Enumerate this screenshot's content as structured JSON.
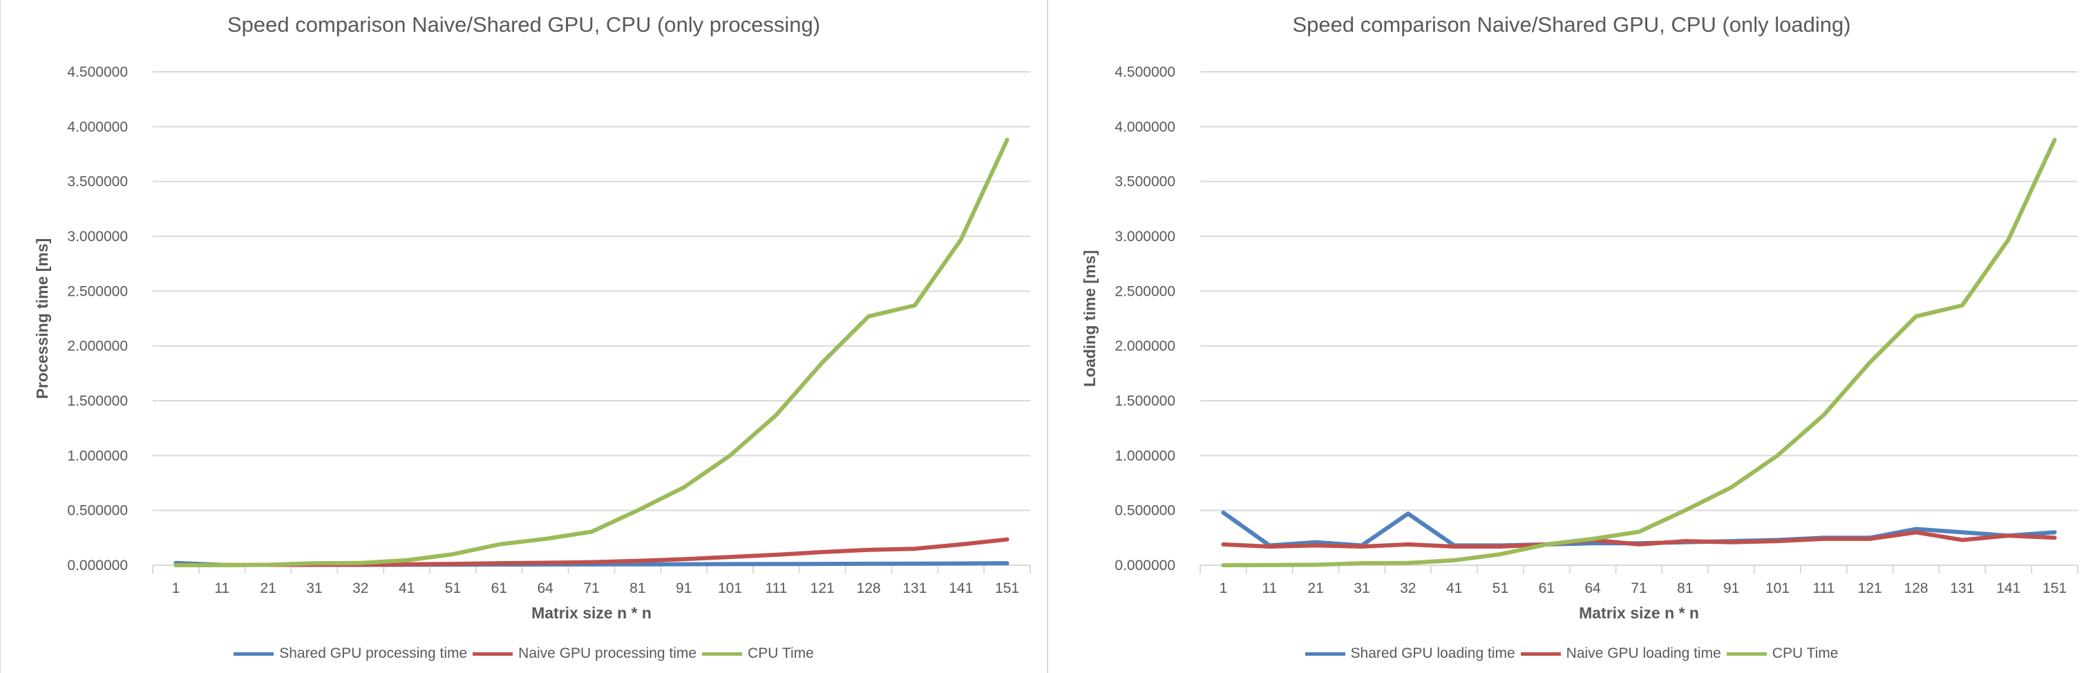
{
  "colors": {
    "shared": "#4f81bd",
    "naive": "#c0504d",
    "cpu": "#9bbb59",
    "grid": "#d9d9d9"
  },
  "chart_data": [
    {
      "type": "line",
      "title": "Speed comparison Naive/Shared GPU, CPU (only processing)",
      "xlabel": "Matrix size n * n",
      "ylabel": "Processing time [ms]",
      "categories": [
        "1",
        "11",
        "21",
        "31",
        "32",
        "41",
        "51",
        "61",
        "64",
        "71",
        "81",
        "91",
        "101",
        "111",
        "121",
        "128",
        "131",
        "141",
        "151"
      ],
      "ylim": [
        0,
        4.5
      ],
      "yticks": [
        "0.000000",
        "0.500000",
        "1.000000",
        "1.500000",
        "2.000000",
        "2.500000",
        "3.000000",
        "3.500000",
        "4.000000",
        "4.500000"
      ],
      "grid": true,
      "legend_position": "bottom",
      "series": [
        {
          "name": "Shared GPU processing time",
          "color_key": "shared",
          "values": [
            0.02,
            0.003,
            0.003,
            0.003,
            0.003,
            0.004,
            0.005,
            0.006,
            0.007,
            0.007,
            0.008,
            0.009,
            0.01,
            0.011,
            0.012,
            0.013,
            0.014,
            0.016,
            0.018
          ]
        },
        {
          "name": "Naive GPU processing time",
          "color_key": "naive",
          "values": [
            0.002,
            0.002,
            0.003,
            0.004,
            0.005,
            0.008,
            0.012,
            0.018,
            0.022,
            0.028,
            0.04,
            0.055,
            0.075,
            0.095,
            0.12,
            0.14,
            0.15,
            0.19,
            0.235
          ]
        },
        {
          "name": "CPU Time",
          "color_key": "cpu",
          "values": [
            0.0,
            0.001,
            0.004,
            0.018,
            0.02,
            0.045,
            0.1,
            0.19,
            0.24,
            0.305,
            0.5,
            0.71,
            1.0,
            1.37,
            1.85,
            2.27,
            2.37,
            2.97,
            3.88
          ]
        }
      ]
    },
    {
      "type": "line",
      "title": "Speed comparison Naive/Shared GPU, CPU (only loading)",
      "xlabel": "Matrix size n * n",
      "ylabel": "Loading time [ms]",
      "categories": [
        "1",
        "11",
        "21",
        "31",
        "32",
        "41",
        "51",
        "61",
        "64",
        "71",
        "81",
        "91",
        "101",
        "111",
        "121",
        "128",
        "131",
        "141",
        "151"
      ],
      "ylim": [
        0,
        4.5
      ],
      "yticks": [
        "0.000000",
        "0.500000",
        "1.000000",
        "1.500000",
        "2.000000",
        "2.500000",
        "3.000000",
        "3.500000",
        "4.000000",
        "4.500000"
      ],
      "grid": true,
      "legend_position": "bottom",
      "series": [
        {
          "name": "Shared GPU loading time",
          "color_key": "shared",
          "values": [
            0.48,
            0.18,
            0.21,
            0.18,
            0.47,
            0.18,
            0.18,
            0.19,
            0.2,
            0.2,
            0.21,
            0.22,
            0.23,
            0.25,
            0.25,
            0.33,
            0.3,
            0.27,
            0.3
          ]
        },
        {
          "name": "Naive GPU loading time",
          "color_key": "naive",
          "values": [
            0.19,
            0.17,
            0.18,
            0.17,
            0.19,
            0.17,
            0.17,
            0.19,
            0.23,
            0.19,
            0.22,
            0.21,
            0.22,
            0.24,
            0.24,
            0.3,
            0.23,
            0.27,
            0.25
          ]
        },
        {
          "name": "CPU Time",
          "color_key": "cpu",
          "values": [
            0.0,
            0.001,
            0.004,
            0.018,
            0.02,
            0.045,
            0.1,
            0.19,
            0.24,
            0.305,
            0.5,
            0.71,
            1.0,
            1.37,
            1.85,
            2.27,
            2.37,
            2.97,
            3.88
          ]
        }
      ]
    }
  ]
}
